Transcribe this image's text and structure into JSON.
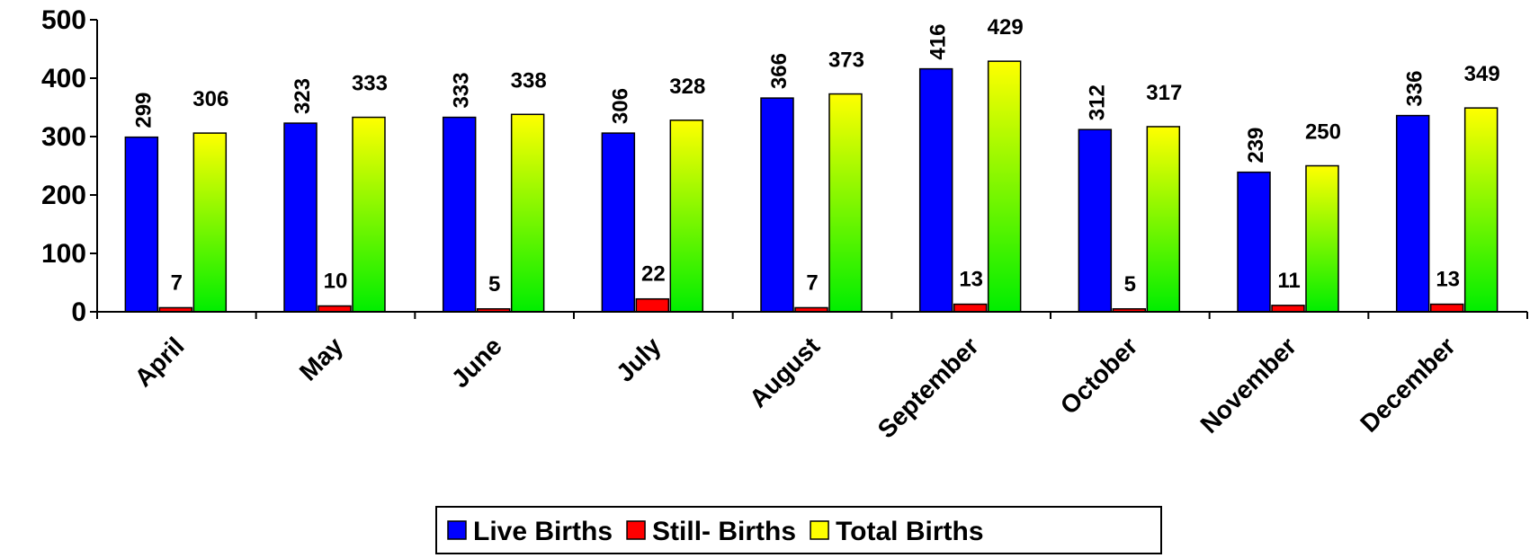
{
  "chart_data": {
    "type": "bar",
    "categories": [
      "April",
      "May",
      "June",
      "July",
      "August",
      "September",
      "October",
      "November",
      "December"
    ],
    "series": [
      {
        "name": "Live Births",
        "color": "#0000ff",
        "values": [
          299,
          323,
          333,
          306,
          366,
          416,
          312,
          239,
          336
        ]
      },
      {
        "name": "Still- Births",
        "color": "#ff0000",
        "values": [
          7,
          10,
          5,
          22,
          7,
          13,
          5,
          11,
          13
        ]
      },
      {
        "name": "Total Births",
        "color": "#ffff00",
        "values": [
          306,
          333,
          338,
          328,
          373,
          429,
          317,
          250,
          349
        ]
      }
    ],
    "ylim": [
      0,
      500
    ],
    "yticks": [
      0,
      100,
      200,
      300,
      400,
      500
    ],
    "legend": "bottom"
  }
}
